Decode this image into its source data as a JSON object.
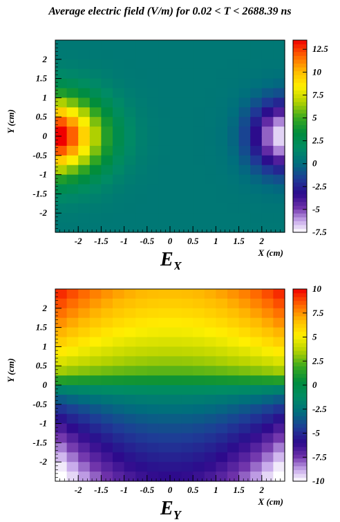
{
  "title": "Average electric field (V/m) for 0.02 < T < 2688.39 ns",
  "chart_data": [
    {
      "type": "heatmap",
      "name": "E_X",
      "label_main": "E",
      "label_sub": "X",
      "xlabel": "X (cm)",
      "ylabel": "Y (cm)",
      "xlim": [
        -2.5,
        2.5
      ],
      "ylim": [
        -2.5,
        2.5
      ],
      "x_ticks": [
        "-2",
        "-1.5",
        "-1",
        "-0.5",
        "0",
        "0.5",
        "1",
        "1.5",
        "2"
      ],
      "y_ticks": [
        "-2",
        "-1.5",
        "-1",
        "-0.5",
        "0",
        "0.5",
        "1",
        "1.5",
        "2"
      ],
      "zlim": [
        -7.5,
        13.5
      ],
      "z_ticks": [
        "-7.5",
        "-5",
        "-2.5",
        "0",
        "2.5",
        "5",
        "7.5",
        "10",
        "12.5"
      ],
      "grid": {
        "nx": 20,
        "ny": 20,
        "field": "ex_dipole"
      }
    },
    {
      "type": "heatmap",
      "name": "E_Y",
      "label_main": "E",
      "label_sub": "Y",
      "xlabel": "X (cm)",
      "ylabel": "Y (cm)",
      "xlim": [
        -2.5,
        2.5
      ],
      "ylim": [
        -2.5,
        2.5
      ],
      "x_ticks": [
        "-2",
        "-1.5",
        "-1",
        "-0.5",
        "0",
        "0.5",
        "1",
        "1.5",
        "2"
      ],
      "y_ticks": [
        "-2",
        "-1.5",
        "-1",
        "-0.5",
        "0",
        "0.5",
        "1",
        "1.5",
        "2"
      ],
      "zlim": [
        -10,
        10
      ],
      "z_ticks": [
        "-10",
        "-7.5",
        "-5",
        "-2.5",
        "0",
        "2.5",
        "5",
        "7.5",
        "10"
      ],
      "grid": {
        "nx": 20,
        "ny": 20,
        "field": "ey_layers"
      }
    }
  ]
}
